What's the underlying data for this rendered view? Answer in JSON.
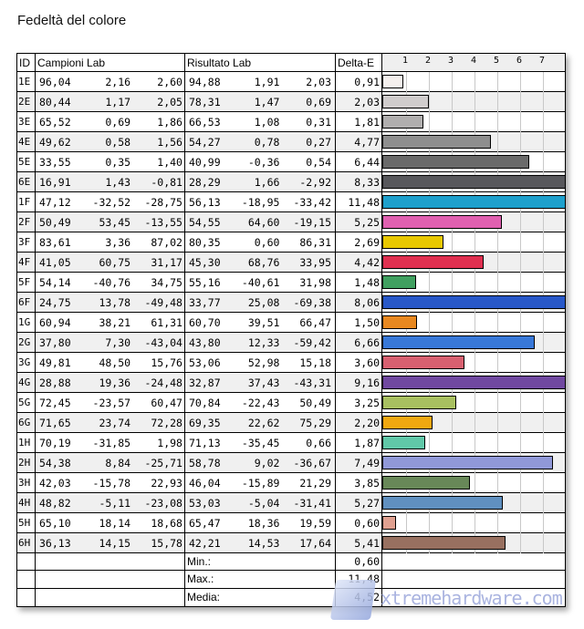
{
  "title": "Fedeltà del colore",
  "headers": {
    "id": "ID",
    "samples": "Campioni Lab",
    "result": "Risultato Lab",
    "delta": "Delta-E"
  },
  "axis_ticks": [
    "1",
    "2",
    "3",
    "4",
    "5",
    "6",
    "7"
  ],
  "axis_max": 8,
  "rows": [
    {
      "id": "1E",
      "s": [
        "96,04",
        "2,16",
        "2,60"
      ],
      "r": [
        "94,88",
        "1,91",
        "2,03"
      ],
      "de": "0,91",
      "v": 0.91,
      "color": "#f5f0ee"
    },
    {
      "id": "2E",
      "s": [
        "80,44",
        "1,17",
        "2,05"
      ],
      "r": [
        "78,31",
        "1,47",
        "0,69"
      ],
      "de": "2,03",
      "v": 2.03,
      "color": "#d0cccc"
    },
    {
      "id": "3E",
      "s": [
        "65,52",
        "0,69",
        "1,86"
      ],
      "r": [
        "66,53",
        "1,08",
        "0,31"
      ],
      "de": "1,81",
      "v": 1.81,
      "color": "#b0aeae"
    },
    {
      "id": "4E",
      "s": [
        "49,62",
        "0,58",
        "1,56"
      ],
      "r": [
        "54,27",
        "0,78",
        "0,27"
      ],
      "de": "4,77",
      "v": 4.77,
      "color": "#8e8e8e"
    },
    {
      "id": "5E",
      "s": [
        "33,55",
        "0,35",
        "1,40"
      ],
      "r": [
        "40,99",
        "-0,36",
        "0,54"
      ],
      "de": "6,44",
      "v": 6.44,
      "color": "#6a6a6a"
    },
    {
      "id": "6E",
      "s": [
        "16,91",
        "1,43",
        "-0,81"
      ],
      "r": [
        "28,29",
        "1,66",
        "-2,92"
      ],
      "de": "8,33",
      "v": 8.33,
      "color": "#58585c"
    },
    {
      "id": "1F",
      "s": [
        "47,12",
        "-32,52",
        "-28,75"
      ],
      "r": [
        "56,13",
        "-18,95",
        "-33,42"
      ],
      "de": "11,48",
      "v": 11.48,
      "color": "#1ea0cc"
    },
    {
      "id": "2F",
      "s": [
        "50,49",
        "53,45",
        "-13,55"
      ],
      "r": [
        "54,55",
        "64,60",
        "-19,15"
      ],
      "de": "5,25",
      "v": 5.25,
      "color": "#e060b0"
    },
    {
      "id": "3F",
      "s": [
        "83,61",
        "3,36",
        "87,02"
      ],
      "r": [
        "80,35",
        "0,60",
        "86,31"
      ],
      "de": "2,69",
      "v": 2.69,
      "color": "#e8c800"
    },
    {
      "id": "4F",
      "s": [
        "41,05",
        "60,75",
        "31,17"
      ],
      "r": [
        "45,30",
        "68,76",
        "33,95"
      ],
      "de": "4,42",
      "v": 4.42,
      "color": "#e03050"
    },
    {
      "id": "5F",
      "s": [
        "54,14",
        "-40,76",
        "34,75"
      ],
      "r": [
        "55,16",
        "-40,61",
        "31,98"
      ],
      "de": "1,48",
      "v": 1.48,
      "color": "#40a060"
    },
    {
      "id": "6F",
      "s": [
        "24,75",
        "13,78",
        "-49,48"
      ],
      "r": [
        "33,77",
        "25,08",
        "-69,38"
      ],
      "de": "8,06",
      "v": 8.06,
      "color": "#2858c8"
    },
    {
      "id": "1G",
      "s": [
        "60,94",
        "38,21",
        "61,31"
      ],
      "r": [
        "60,70",
        "39,51",
        "66,47"
      ],
      "de": "1,50",
      "v": 1.5,
      "color": "#e88820"
    },
    {
      "id": "2G",
      "s": [
        "37,80",
        "7,30",
        "-43,04"
      ],
      "r": [
        "43,80",
        "12,33",
        "-59,42"
      ],
      "de": "6,66",
      "v": 6.66,
      "color": "#3878d8"
    },
    {
      "id": "3G",
      "s": [
        "49,81",
        "48,50",
        "15,76"
      ],
      "r": [
        "53,06",
        "52,98",
        "15,18"
      ],
      "de": "3,60",
      "v": 3.6,
      "color": "#d86070"
    },
    {
      "id": "4G",
      "s": [
        "28,88",
        "19,36",
        "-24,48"
      ],
      "r": [
        "32,87",
        "37,43",
        "-43,31"
      ],
      "de": "9,16",
      "v": 9.16,
      "color": "#7048a0"
    },
    {
      "id": "5G",
      "s": [
        "72,45",
        "-23,57",
        "60,47"
      ],
      "r": [
        "70,84",
        "-22,43",
        "50,49"
      ],
      "de": "3,25",
      "v": 3.25,
      "color": "#a8c060"
    },
    {
      "id": "6G",
      "s": [
        "71,65",
        "23,74",
        "72,28"
      ],
      "r": [
        "69,35",
        "22,62",
        "75,29"
      ],
      "de": "2,20",
      "v": 2.2,
      "color": "#f0a810"
    },
    {
      "id": "1H",
      "s": [
        "70,19",
        "-31,85",
        "1,98"
      ],
      "r": [
        "71,13",
        "-35,45",
        "0,66"
      ],
      "de": "1,87",
      "v": 1.87,
      "color": "#60c8a8"
    },
    {
      "id": "2H",
      "s": [
        "54,38",
        "8,84",
        "-25,71"
      ],
      "r": [
        "58,78",
        "9,02",
        "-36,67"
      ],
      "de": "7,49",
      "v": 7.49,
      "color": "#9098d8"
    },
    {
      "id": "3H",
      "s": [
        "42,03",
        "-15,78",
        "22,93"
      ],
      "r": [
        "46,04",
        "-15,89",
        "21,29"
      ],
      "de": "3,85",
      "v": 3.85,
      "color": "#688858"
    },
    {
      "id": "4H",
      "s": [
        "48,82",
        "-5,11",
        "-23,08"
      ],
      "r": [
        "53,03",
        "-5,04",
        "-31,41"
      ],
      "de": "5,27",
      "v": 5.27,
      "color": "#6090c0"
    },
    {
      "id": "5H",
      "s": [
        "65,10",
        "18,14",
        "18,68"
      ],
      "r": [
        "65,47",
        "18,36",
        "19,59"
      ],
      "de": "0,60",
      "v": 0.6,
      "color": "#e0a090"
    },
    {
      "id": "6H",
      "s": [
        "36,13",
        "14,15",
        "15,78"
      ],
      "r": [
        "42,21",
        "14,53",
        "17,64"
      ],
      "de": "5,41",
      "v": 5.41,
      "color": "#987060"
    }
  ],
  "summary": [
    {
      "label": "Min.:",
      "value": "0,60"
    },
    {
      "label": "Max.:",
      "value": "11,48"
    },
    {
      "label": "Media:",
      "value": "4,52"
    }
  ],
  "watermark": "xtremehardware.com"
}
